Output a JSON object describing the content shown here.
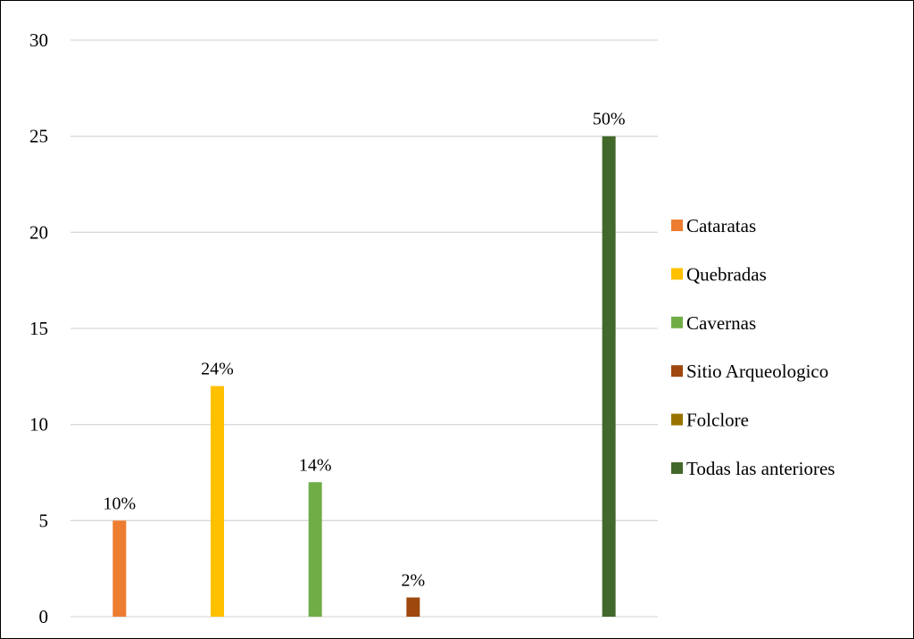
{
  "chart_data": {
    "type": "bar",
    "categories": [
      "Cataratas",
      "Quebradas",
      "Cavernas",
      "Sitio Arqueologico",
      "Folclore",
      "Todas las anteriores"
    ],
    "values": [
      5,
      12,
      7,
      1,
      0,
      25
    ],
    "data_labels": [
      "10%",
      "24%",
      "14%",
      "2%",
      "",
      "50%"
    ],
    "colors": [
      "#ED7D31",
      "#FFC000",
      "#70AD47",
      "#9E480E",
      "#997300",
      "#43682B"
    ],
    "ylim": [
      0,
      30
    ],
    "yticks": [
      "0",
      "5",
      "10",
      "15",
      "20",
      "25",
      "30"
    ],
    "ytick_values": [
      0,
      5,
      10,
      15,
      20,
      25,
      30
    ],
    "grid": true,
    "legend_position": "right",
    "title": "",
    "xlabel": "",
    "ylabel": ""
  }
}
